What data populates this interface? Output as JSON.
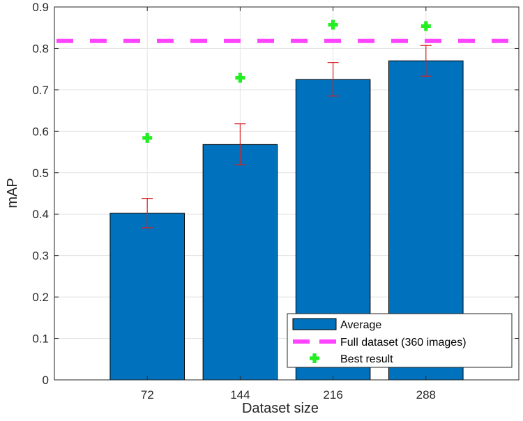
{
  "chart_data": {
    "type": "bar",
    "xlabel": "Dataset size",
    "ylabel": "mAP",
    "categories": [
      "72",
      "144",
      "216",
      "288"
    ],
    "ylim": [
      0,
      0.9
    ],
    "yticks": [
      "0",
      "0.1",
      "0.2",
      "0.3",
      "0.4",
      "0.5",
      "0.6",
      "0.7",
      "0.8",
      "0.9"
    ],
    "grid": true,
    "legend_position": "bottom-right",
    "series": [
      {
        "name": "Average",
        "kind": "bar",
        "color": "#0072BD",
        "values": [
          0.402,
          0.568,
          0.725,
          0.77
        ],
        "error_low": [
          0.367,
          0.519,
          0.685,
          0.733
        ],
        "error_high": [
          0.438,
          0.618,
          0.766,
          0.807
        ],
        "error_color": "#D92020"
      },
      {
        "name": "Full dataset (360 images)",
        "kind": "hline",
        "color": "#FF44FF",
        "value": 0.818
      },
      {
        "name": "Best result",
        "kind": "marker",
        "marker": "plus",
        "color": "#22EE22",
        "values": [
          0.584,
          0.729,
          0.857,
          0.854
        ]
      }
    ]
  }
}
